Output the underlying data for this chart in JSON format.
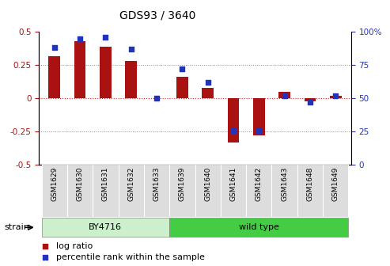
{
  "title": "GDS93 / 3640",
  "samples": [
    "GSM1629",
    "GSM1630",
    "GSM1631",
    "GSM1632",
    "GSM1633",
    "GSM1639",
    "GSM1640",
    "GSM1641",
    "GSM1642",
    "GSM1643",
    "GSM1648",
    "GSM1649"
  ],
  "log_ratio": [
    0.32,
    0.43,
    0.39,
    0.28,
    0.0,
    0.16,
    0.08,
    -0.33,
    -0.28,
    0.05,
    -0.02,
    0.02
  ],
  "percentile": [
    88,
    95,
    96,
    87,
    50,
    72,
    62,
    26,
    26,
    52,
    47,
    52
  ],
  "bar_color": "#aa1111",
  "dot_color": "#2233bb",
  "group1_color_light": "#ccf0cc",
  "group1_color": "#aaddaa",
  "group2_color": "#44cc44",
  "sample_bg_color": "#dddddd",
  "groups": [
    {
      "label": "BY4716",
      "start": 0,
      "end": 5
    },
    {
      "label": "wild type",
      "start": 5,
      "end": 12
    }
  ],
  "ylim_left": [
    -0.5,
    0.5
  ],
  "ylim_right": [
    0,
    100
  ],
  "yticks_left": [
    -0.5,
    -0.25,
    0.0,
    0.25,
    0.5
  ],
  "yticks_left_labels": [
    "-0.5",
    "-0.25",
    "0",
    "0.25",
    "0.5"
  ],
  "yticks_right": [
    0,
    25,
    50,
    75,
    100
  ],
  "yticks_right_labels": [
    "0",
    "25",
    "50",
    "75",
    "100%"
  ],
  "hlines_dotted": [
    0.25,
    -0.25
  ],
  "zero_line_color": "#cc2222",
  "dot_line_color": "#888888",
  "legend_log_ratio": "log ratio",
  "legend_percentile": "percentile rank within the sample",
  "strain_label": "strain",
  "bar_width": 0.45,
  "dot_size": 22
}
